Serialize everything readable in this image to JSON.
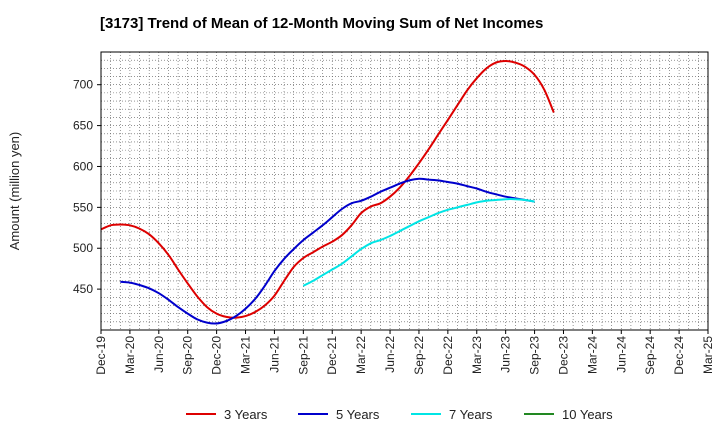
{
  "chart_data": {
    "type": "line",
    "title": "[3173]  Trend of Mean of 12-Month Moving Sum of Net Incomes",
    "ylabel": "Amount (million yen)",
    "xlabel": "",
    "ylim": [
      400,
      740
    ],
    "yticks": [
      450,
      500,
      550,
      600,
      650,
      700
    ],
    "xticks": [
      "Dec-19",
      "Mar-20",
      "Jun-20",
      "Sep-20",
      "Dec-20",
      "Mar-21",
      "Jun-21",
      "Sep-21",
      "Dec-21",
      "Mar-22",
      "Jun-22",
      "Sep-22",
      "Dec-22",
      "Mar-23",
      "Jun-23",
      "Sep-23",
      "Dec-23",
      "Mar-24",
      "Jun-24",
      "Sep-24",
      "Dec-24",
      "Mar-25"
    ],
    "grid": true,
    "legend_position": "bottom",
    "series": [
      {
        "name": "3 Years",
        "color": "#dd0000",
        "start_index": 0,
        "values": [
          523,
          528,
          529,
          528,
          524,
          517,
          506,
          492,
          474,
          457,
          441,
          428,
          420,
          416,
          415,
          417,
          422,
          430,
          442,
          460,
          477,
          488,
          495,
          502,
          508,
          516,
          528,
          543,
          551,
          555,
          563,
          574,
          588,
          604,
          621,
          639,
          657,
          675,
          693,
          708,
          720,
          727,
          729,
          727,
          722,
          712,
          694,
          666
        ]
      },
      {
        "name": "5 Years",
        "color": "#0000cc",
        "start_index": 2,
        "values": [
          459,
          458,
          455,
          451,
          445,
          437,
          428,
          420,
          413,
          409,
          408,
          411,
          417,
          426,
          438,
          454,
          472,
          487,
          499,
          510,
          519,
          528,
          538,
          548,
          555,
          558,
          563,
          569,
          574,
          579,
          583,
          585,
          584,
          583,
          581,
          579,
          576,
          573,
          569,
          566,
          563,
          561,
          559,
          557
        ]
      },
      {
        "name": "7 Years",
        "color": "#00e5e5",
        "start_index": 21,
        "values": [
          454,
          460,
          467,
          474,
          481,
          490,
          499,
          506,
          510,
          515,
          521,
          527,
          533,
          538,
          543,
          547,
          550,
          553,
          556,
          558,
          559,
          560,
          560,
          559,
          557
        ]
      },
      {
        "name": "10 Years",
        "color": "#228822",
        "start_index": 0,
        "values": []
      }
    ]
  }
}
